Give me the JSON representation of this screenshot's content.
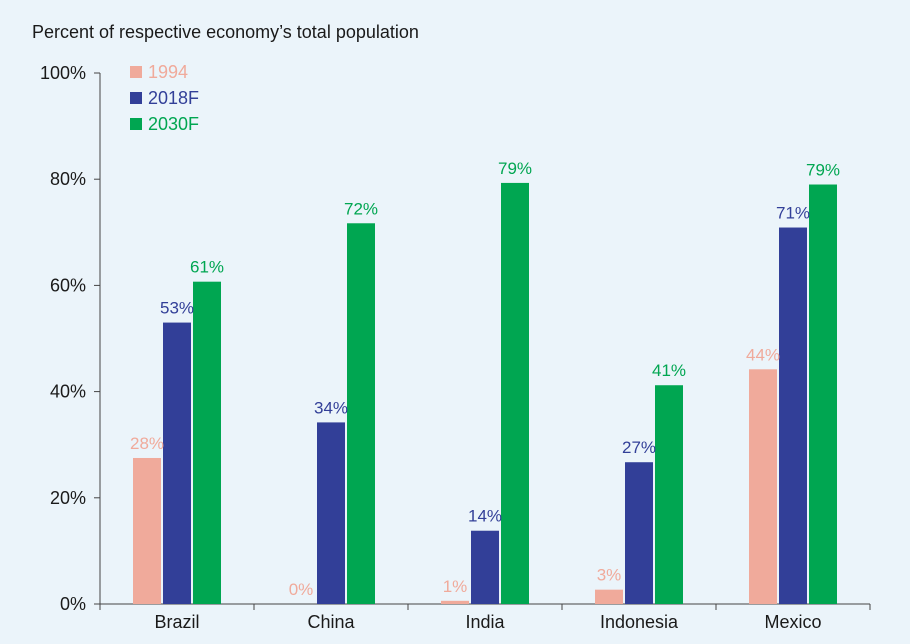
{
  "chart_data": {
    "type": "bar",
    "title": "Percent of respective economy’s total population",
    "categories": [
      "Brazil",
      "China",
      "India",
      "Indonesia",
      "Mexico"
    ],
    "series": [
      {
        "name": "1994",
        "color": "#f0aa9b",
        "values": [
          27.5,
          0.0,
          0.6,
          2.7,
          44.2
        ],
        "labels": [
          "28%",
          "0%",
          "1%",
          "3%",
          "44%"
        ]
      },
      {
        "name": "2018F",
        "color": "#323f98",
        "values": [
          53.0,
          34.2,
          13.8,
          26.7,
          70.9
        ],
        "labels": [
          "53%",
          "34%",
          "14%",
          "27%",
          "71%"
        ]
      },
      {
        "name": "2030F",
        "color": "#00a651",
        "values": [
          60.7,
          71.7,
          79.3,
          41.2,
          79.0
        ],
        "labels": [
          "61%",
          "72%",
          "79%",
          "41%",
          "79%"
        ]
      }
    ],
    "ylim": [
      0,
      100
    ],
    "yticks": [
      {
        "value": 0,
        "label": "0%"
      },
      {
        "value": 20,
        "label": "20%"
      },
      {
        "value": 40,
        "label": "40%"
      },
      {
        "value": 60,
        "label": "60%"
      },
      {
        "value": 80,
        "label": "80%"
      },
      {
        "value": 100,
        "label": "100%"
      }
    ],
    "legend_position": "top-left",
    "grid": false
  }
}
